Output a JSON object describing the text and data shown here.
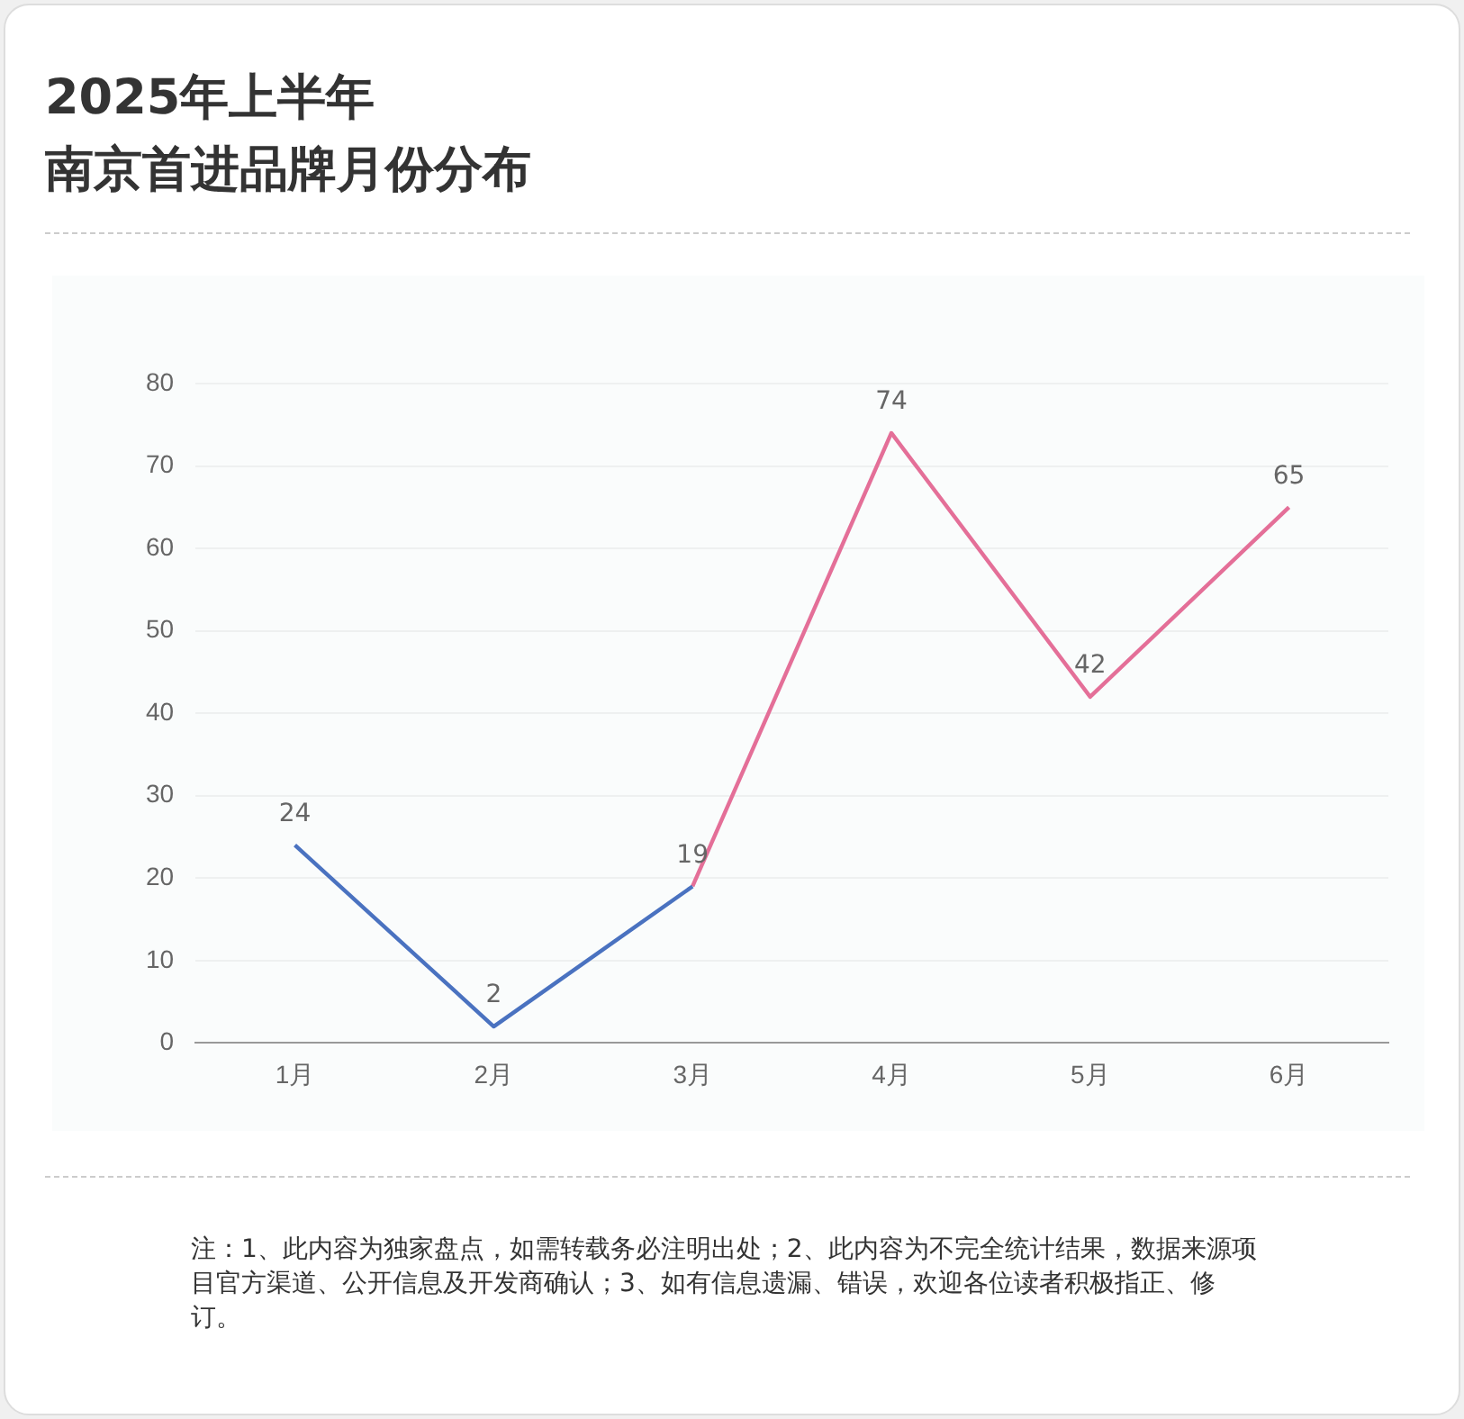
{
  "chart_data": {
    "type": "line",
    "title": "2025年上半年",
    "subtitle": "南京首进品牌月份分布",
    "categories": [
      "1月",
      "2月",
      "3月",
      "4月",
      "5月",
      "6月"
    ],
    "series": [
      {
        "color": "#4a72c0",
        "values": [
          24,
          2,
          19,
          null,
          null,
          null
        ],
        "value_labels": [
          "24",
          "2",
          "19",
          null,
          null,
          null
        ]
      },
      {
        "color": "#e46f98",
        "values": [
          null,
          null,
          19,
          74,
          42,
          65
        ],
        "value_labels": [
          null,
          null,
          null,
          "74",
          "42",
          "65"
        ]
      }
    ],
    "ylim": [
      0,
      80
    ],
    "yticks": [
      0,
      10,
      20,
      30,
      40,
      50,
      60,
      70,
      80
    ],
    "grid": "y",
    "marker": "none",
    "line_style": "solid",
    "legend": false,
    "annotations": [
      "注：1、此内容为独家盘点，如需转载务必注明出处；2、此内容为不完全统计结果，数据来源项目官方渠道、公开信息及开发商确认；3、如有信息遗漏、错误，欢迎各位读者积极指正、修订。"
    ]
  }
}
